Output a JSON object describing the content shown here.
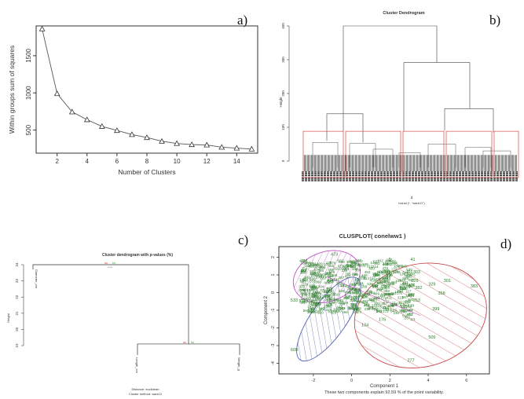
{
  "panel_labels": [
    "a)",
    "b)",
    "c)",
    "d)"
  ],
  "chart_data": [
    {
      "panel": "a)",
      "type": "line",
      "marker": "triangle-open",
      "title": "",
      "xlabel": "Number of Clusters",
      "ylabel": "Within groups sum of squares",
      "x": [
        1,
        2,
        3,
        4,
        5,
        6,
        7,
        8,
        9,
        10,
        11,
        12,
        13,
        14,
        15
      ],
      "y": [
        1860,
        990,
        745,
        640,
        550,
        495,
        440,
        400,
        350,
        320,
        305,
        300,
        270,
        258,
        245
      ],
      "xlim": [
        0.6,
        15.4
      ],
      "ylim": [
        190,
        1900
      ],
      "xticks": [
        2,
        4,
        6,
        8,
        10,
        12,
        14
      ],
      "yticks": [
        500,
        1000,
        1500
      ],
      "xtick_labels": [
        "2",
        "4",
        "6",
        "8",
        "10",
        "12",
        "14"
      ],
      "ytick_labels": [
        "500",
        "1000",
        "1500"
      ],
      "grid": false
    },
    {
      "panel": "b)",
      "type": "dendrogram",
      "title": "Cluster Dendrogram",
      "ylabel": "Height",
      "xlabel": "d",
      "subtitle": "hclust (*, \"ward.D\")",
      "ylim": [
        0,
        400
      ],
      "yticks": [
        0,
        100,
        200,
        300,
        400
      ],
      "ytick_labels": [
        "0",
        "100",
        "200",
        "300",
        "400"
      ],
      "cut_height": 88,
      "cut_box_color": "#e06060",
      "merges": [
        {
          "left": 0.085,
          "right": 0.32,
          "height": 400
        },
        {
          "left": 0.73,
          "right": 0.72,
          "height": 400
        }
      ],
      "grid": false
    },
    {
      "panel": "c)",
      "type": "dendrogram",
      "title": "Cluster dendrogram with p-values (%)",
      "ylabel": "Height",
      "leaves": [
        "Diameter_cm",
        "Length_cm",
        "Weight_g"
      ],
      "ylim": [
        19,
        24
      ],
      "yticks": [
        19,
        20,
        21,
        22,
        23,
        24
      ],
      "ytick_labels": [
        "19",
        "20",
        "21",
        "22",
        "23",
        "24"
      ],
      "merge_heights": [
        19.1,
        24.0
      ],
      "pvalue_labels": [
        {
          "au": "au",
          "bp": "bp",
          "edge": "edge"
        }
      ],
      "footer_distance": "Distance: euclidean",
      "footer_method": "Cluster method: ward.D",
      "grid": false
    },
    {
      "panel": "d)",
      "type": "scatter",
      "title": "CLUSPLOT( conelww1 )",
      "xlabel": "Component 1",
      "ylabel": "Component 2",
      "subtitle": "These two components explain 92.59 % of the point variability.",
      "xlim": [
        -3.8,
        7.2
      ],
      "ylim": [
        -4.6,
        2.6
      ],
      "xticks": [
        -2,
        0,
        2,
        4,
        6
      ],
      "yticks": [
        -4,
        -3,
        -2,
        -1,
        0,
        1,
        2
      ],
      "xtick_labels": [
        "-2",
        "0",
        "2",
        "4",
        "6"
      ],
      "ytick_labels": [
        "-4",
        "-3",
        "-2",
        "-1",
        "0",
        "1",
        "2"
      ],
      "visible_point_labels": [
        {
          "text": "163",
          "x": -2.5,
          "y": 1.6
        },
        {
          "text": "473",
          "x": -0.9,
          "y": 2.1
        },
        {
          "text": "5",
          "x": 2.0,
          "y": 1.8
        },
        {
          "text": "41",
          "x": 3.2,
          "y": 1.8
        },
        {
          "text": "303",
          "x": 3.4,
          "y": 1.1
        },
        {
          "text": "226",
          "x": 3.3,
          "y": 0.6
        },
        {
          "text": "301",
          "x": 5.0,
          "y": 0.6
        },
        {
          "text": "329",
          "x": 4.2,
          "y": 0.4
        },
        {
          "text": "383",
          "x": 6.4,
          "y": 0.3
        },
        {
          "text": "382",
          "x": 3.5,
          "y": 0.2
        },
        {
          "text": "358",
          "x": 4.7,
          "y": -0.1
        },
        {
          "text": "253",
          "x": 3.4,
          "y": -0.5
        },
        {
          "text": "399",
          "x": 4.4,
          "y": -1.0
        },
        {
          "text": "345",
          "x": 2.2,
          "y": -1.1
        },
        {
          "text": "87",
          "x": 3.1,
          "y": -1.3
        },
        {
          "text": "104",
          "x": 0.7,
          "y": -1.9
        },
        {
          "text": "176",
          "x": 1.6,
          "y": -1.6
        },
        {
          "text": "533",
          "x": -3.0,
          "y": -0.5
        },
        {
          "text": "509",
          "x": 4.2,
          "y": -2.6
        },
        {
          "text": "609",
          "x": -3.0,
          "y": -3.3
        },
        {
          "text": "277",
          "x": 3.1,
          "y": -3.9
        }
      ],
      "cluster_ellipses": [
        {
          "color": "#c050c0",
          "cx": -1.3,
          "cy": 0.9,
          "rx": 1.8,
          "ry": 1.4,
          "angle": -20
        },
        {
          "color": "#4f5fb5",
          "cx": -1.2,
          "cy": -1.5,
          "rx": 2.6,
          "ry": 1.0,
          "angle": -55
        },
        {
          "color": "#c84848",
          "cx": 3.6,
          "cy": -1.3,
          "rx": 3.5,
          "ry": 2.9,
          "angle": -15
        }
      ],
      "point_color": "#2a7d2a",
      "grid": false
    }
  ]
}
